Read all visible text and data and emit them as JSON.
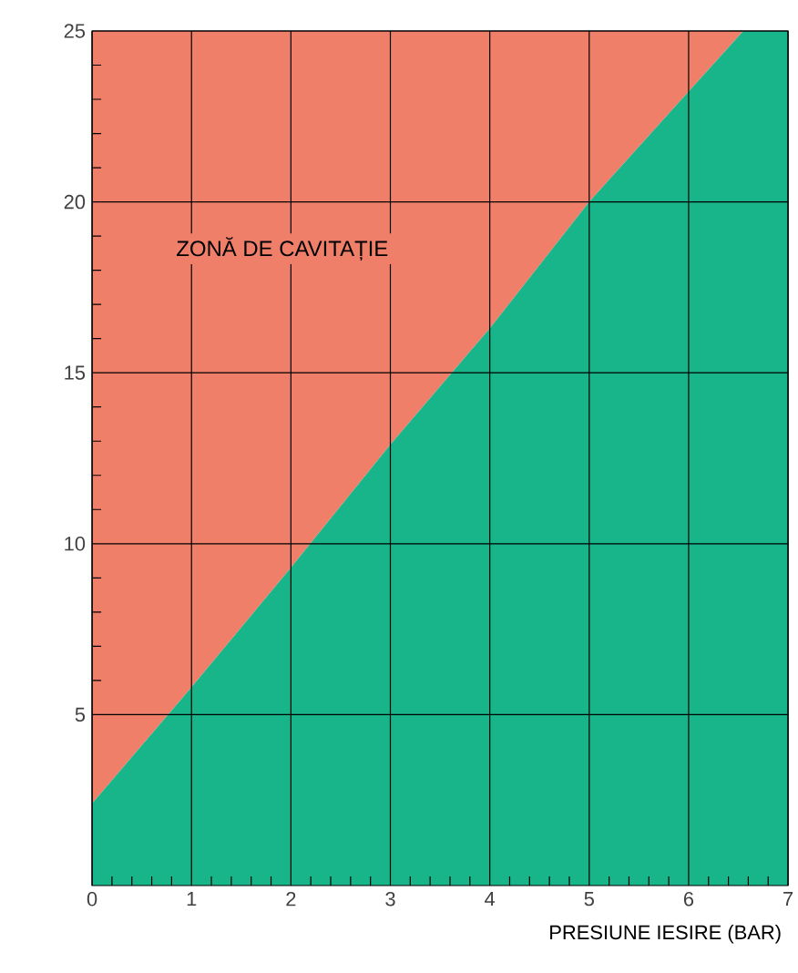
{
  "chart_data": {
    "type": "area",
    "stacked": true,
    "xlabel": "PRESIUNE IESIRE (BAR)",
    "x": [
      0,
      1,
      2,
      3,
      4,
      5,
      6.55,
      7
    ],
    "series": [
      {
        "color": "#18b48a",
        "values": [
          2.4,
          5.8,
          9.3,
          12.9,
          16.3,
          20,
          25,
          25
        ]
      },
      {
        "color": "#f07f6a",
        "values": [
          22.6,
          19.2,
          15.7,
          12.1,
          8.7,
          5,
          0,
          0
        ]
      }
    ],
    "xlim": [
      0,
      7
    ],
    "ylim": [
      0,
      25
    ],
    "xticks": [
      0,
      1,
      2,
      3,
      4,
      5,
      6,
      7
    ],
    "yticks": [
      5,
      10,
      15,
      20,
      25
    ],
    "grid": true,
    "annotations": [
      "ZONĂ DE CAVITAȚIE"
    ]
  }
}
